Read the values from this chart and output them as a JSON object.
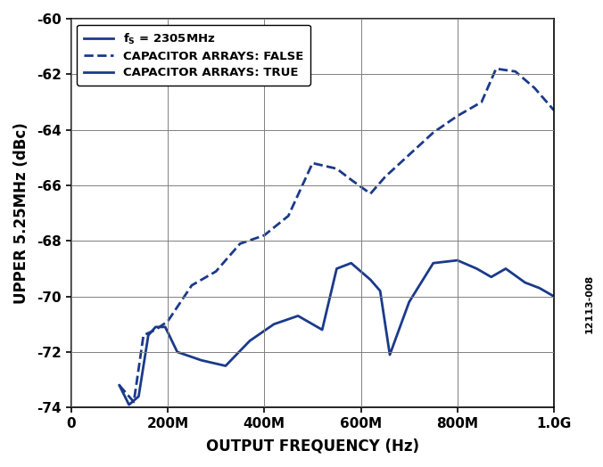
{
  "title": "",
  "xlabel": "OUTPUT FREQUENCY (Hz)",
  "ylabel": "UPPER 5.25MHz (dBc)",
  "xlim": [
    0,
    1000000000.0
  ],
  "ylim": [
    -74,
    -60
  ],
  "yticks": [
    -74,
    -72,
    -70,
    -68,
    -66,
    -64,
    -62,
    -60
  ],
  "xticks": [
    0,
    200000000.0,
    400000000.0,
    600000000.0,
    800000000.0,
    1000000000.0
  ],
  "xticklabels": [
    "0",
    "200M",
    "400M",
    "600M",
    "800M",
    "1.0G"
  ],
  "color": "#1F3A8F",
  "line_color": "#1a3a8a",
  "watermark": "12113-008",
  "legend_label_fs": "f$_S$ = 2305MHz",
  "legend_label_false": "CAPACITOR ARRAYS: FALSE",
  "legend_label_true": "CAPACITOR ARRAYS: TRUE",
  "false_x": [
    100000000.0,
    130000000.0,
    150000000.0,
    175000000.0,
    200000000.0,
    250000000.0,
    300000000.0,
    350000000.0,
    400000000.0,
    450000000.0,
    500000000.0,
    550000000.0,
    580000000.0,
    620000000.0,
    650000000.0,
    700000000.0,
    750000000.0,
    800000000.0,
    850000000.0,
    880000000.0,
    920000000.0,
    960000000.0,
    1000000000.0
  ],
  "false_y": [
    -73.2,
    -73.8,
    -71.4,
    -71.2,
    -70.9,
    -69.6,
    -69.1,
    -68.1,
    -67.8,
    -67.1,
    -65.2,
    -65.4,
    -65.8,
    -66.3,
    -65.7,
    -64.9,
    -64.1,
    -63.5,
    -63.0,
    -61.8,
    -61.9,
    -62.5,
    -63.3
  ],
  "true_x": [
    100000000.0,
    120000000.0,
    140000000.0,
    160000000.0,
    175000000.0,
    195000000.0,
    220000000.0,
    270000000.0,
    320000000.0,
    370000000.0,
    420000000.0,
    470000000.0,
    520000000.0,
    550000000.0,
    580000000.0,
    620000000.0,
    640000000.0,
    660000000.0,
    700000000.0,
    750000000.0,
    800000000.0,
    840000000.0,
    870000000.0,
    900000000.0,
    940000000.0,
    970000000.0,
    1000000000.0
  ],
  "true_y": [
    -73.2,
    -73.9,
    -73.6,
    -71.4,
    -71.1,
    -71.1,
    -72.0,
    -72.3,
    -72.5,
    -71.6,
    -71.0,
    -70.7,
    -71.2,
    -69.0,
    -68.8,
    -69.4,
    -69.8,
    -72.1,
    -70.2,
    -68.8,
    -68.7,
    -69.0,
    -69.3,
    -69.0,
    -69.5,
    -69.7,
    -70.0
  ]
}
